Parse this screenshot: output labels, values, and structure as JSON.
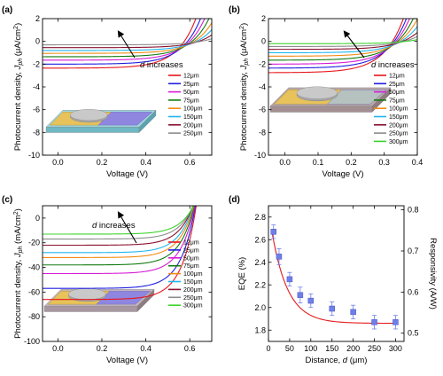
{
  "chart_data": [
    {
      "panel": "(a)",
      "type": "line",
      "title": "",
      "xlabel": "Voltage (V)",
      "ylabel": "Photocurrent density, J_ph (μA/cm²)",
      "ylabel_parts": {
        "pre": "Photocurrent density,  ",
        "var": "J",
        "sub": "ph",
        "post": " (μA/cm",
        "sup": "2",
        "end": ")"
      },
      "xlim": [
        -0.07,
        0.7
      ],
      "ylim": [
        -10,
        2
      ],
      "xticks": [
        0.0,
        0.2,
        0.4,
        0.6
      ],
      "yticks": [
        -10,
        -8,
        -6,
        -4,
        -2,
        0,
        2
      ],
      "annotation": {
        "var": "d",
        "text": " increases"
      },
      "legend": "inside-right",
      "series": [
        {
          "name": "12μm",
          "color": "#e8161c",
          "isc": -2.35,
          "voc": 0.575,
          "n": 0.085
        },
        {
          "name": "25μm",
          "color": "#1f1fe0",
          "isc": -2.0,
          "voc": 0.59,
          "n": 0.085
        },
        {
          "name": "50μm",
          "color": "#d61bd6",
          "isc": -1.65,
          "voc": 0.6,
          "n": 0.085
        },
        {
          "name": "75μm",
          "color": "#127a12",
          "isc": -1.35,
          "voc": 0.61,
          "n": 0.085
        },
        {
          "name": "100μm",
          "color": "#f28a12",
          "isc": -1.05,
          "voc": 0.62,
          "n": 0.085
        },
        {
          "name": "150μm",
          "color": "#21b5f0",
          "isc": -0.8,
          "voc": 0.63,
          "n": 0.085
        },
        {
          "name": "200μm",
          "color": "#8a1230",
          "isc": -0.55,
          "voc": 0.64,
          "n": 0.085
        },
        {
          "name": "250μm",
          "color": "#8c8c8c",
          "isc": -0.3,
          "voc": 0.65,
          "n": 0.085
        }
      ]
    },
    {
      "panel": "(b)",
      "type": "line",
      "title": "",
      "xlabel": "Voltage (V)",
      "ylabel": "Photocurrent density, J_ph (μA/cm²)",
      "ylabel_parts": {
        "pre": "Photocurrent density,  ",
        "var": "J",
        "sub": "ph",
        "post": " (μA/cm",
        "sup": "2",
        "end": ")"
      },
      "xlim": [
        -0.05,
        0.4
      ],
      "ylim": [
        -10,
        2
      ],
      "xticks": [
        0.0,
        0.1,
        0.2,
        0.3,
        0.4
      ],
      "yticks": [
        -10,
        -8,
        -6,
        -4,
        -2,
        0,
        2
      ],
      "annotation": {
        "var": "d",
        "text": " increases"
      },
      "legend": "inside-right",
      "series": [
        {
          "name": "12μm",
          "color": "#e8161c",
          "isc": -2.75,
          "voc": 0.325,
          "n": 0.06
        },
        {
          "name": "25μm",
          "color": "#1f1fe0",
          "isc": -2.35,
          "voc": 0.33,
          "n": 0.06
        },
        {
          "name": "50μm",
          "color": "#d61bd6",
          "isc": -2.0,
          "voc": 0.335,
          "n": 0.06
        },
        {
          "name": "75μm",
          "color": "#127a12",
          "isc": -1.65,
          "voc": 0.34,
          "n": 0.06
        },
        {
          "name": "100μm",
          "color": "#f28a12",
          "isc": -1.3,
          "voc": 0.345,
          "n": 0.06
        },
        {
          "name": "150μm",
          "color": "#21b5f0",
          "isc": -1.0,
          "voc": 0.35,
          "n": 0.06
        },
        {
          "name": "200μm",
          "color": "#8a1230",
          "isc": -0.7,
          "voc": 0.355,
          "n": 0.06
        },
        {
          "name": "250μm",
          "color": "#8c8c8c",
          "isc": -0.45,
          "voc": 0.36,
          "n": 0.06
        },
        {
          "name": "300μm",
          "color": "#3cd42c",
          "isc": -0.2,
          "voc": 0.365,
          "n": 0.06
        }
      ]
    },
    {
      "panel": "(c)",
      "type": "line",
      "title": "",
      "xlabel": "Voltage (V)",
      "ylabel": "Photocurrent density, J_ph (mA/cm²)",
      "ylabel_parts": {
        "pre": "Photocurrent density,  ",
        "var": "J",
        "sub": "ph",
        "post": " (mA/cm",
        "sup": "2",
        "end": ")"
      },
      "xlim": [
        -0.07,
        0.7
      ],
      "ylim": [
        -100,
        10
      ],
      "xticks": [
        0.0,
        0.2,
        0.4,
        0.6
      ],
      "yticks": [
        -100,
        -80,
        -60,
        -40,
        -20,
        0
      ],
      "annotation": {
        "var": "d",
        "text": " increases"
      },
      "legend": "inside-right",
      "series": [
        {
          "name": "12μm",
          "color": "#e8161c",
          "isc": -66,
          "voc": 0.62,
          "n": 0.065
        },
        {
          "name": "25μm",
          "color": "#1f1fe0",
          "isc": -57,
          "voc": 0.615,
          "n": 0.065
        },
        {
          "name": "50μm",
          "color": "#d61bd6",
          "isc": -45,
          "voc": 0.61,
          "n": 0.065
        },
        {
          "name": "75μm",
          "color": "#127a12",
          "isc": -38,
          "voc": 0.605,
          "n": 0.065
        },
        {
          "name": "100μm",
          "color": "#f28a12",
          "isc": -32,
          "voc": 0.6,
          "n": 0.065
        },
        {
          "name": "150μm",
          "color": "#21b5f0",
          "isc": -28,
          "voc": 0.595,
          "n": 0.065
        },
        {
          "name": "200μm",
          "color": "#8a1230",
          "isc": -22,
          "voc": 0.59,
          "n": 0.065
        },
        {
          "name": "250μm",
          "color": "#8c8c8c",
          "isc": -17,
          "voc": 0.585,
          "n": 0.065
        },
        {
          "name": "300μm",
          "color": "#3cd42c",
          "isc": -13,
          "voc": 0.58,
          "n": 0.065
        }
      ]
    },
    {
      "panel": "(d)",
      "type": "scatter",
      "title": "",
      "xlabel": "Distance, d (μm)",
      "xlabel_parts": {
        "pre": "Distance, ",
        "var": "d",
        "post": " (μm)"
      },
      "ylabel": "EQE (%)",
      "y2label": "Responsivity (A/W)",
      "xlim": [
        0,
        320
      ],
      "ylim": [
        1.7,
        2.9
      ],
      "y2lim": [
        0.48,
        0.81
      ],
      "xticks": [
        0,
        50,
        100,
        150,
        200,
        250,
        300
      ],
      "yticks": [
        1.8,
        2.0,
        2.2,
        2.4,
        2.6,
        2.8
      ],
      "y2ticks": [
        0.5,
        0.6,
        0.7,
        0.8
      ],
      "points": [
        {
          "x": 12,
          "y": 2.67,
          "err": 0.06
        },
        {
          "x": 25,
          "y": 2.45,
          "err": 0.07
        },
        {
          "x": 50,
          "y": 2.25,
          "err": 0.06
        },
        {
          "x": 75,
          "y": 2.11,
          "err": 0.07
        },
        {
          "x": 100,
          "y": 2.06,
          "err": 0.06
        },
        {
          "x": 150,
          "y": 1.99,
          "err": 0.06
        },
        {
          "x": 200,
          "y": 1.96,
          "err": 0.06
        },
        {
          "x": 250,
          "y": 1.87,
          "err": 0.06
        },
        {
          "x": 300,
          "y": 1.87,
          "err": 0.06
        }
      ],
      "fit": {
        "type": "exponential",
        "y0": 1.86,
        "a": 1.01,
        "decay": 37.5,
        "x_from": 8,
        "x_to": 305,
        "color": "#e41a1c"
      },
      "marker_color": "#6f7fe8"
    }
  ]
}
